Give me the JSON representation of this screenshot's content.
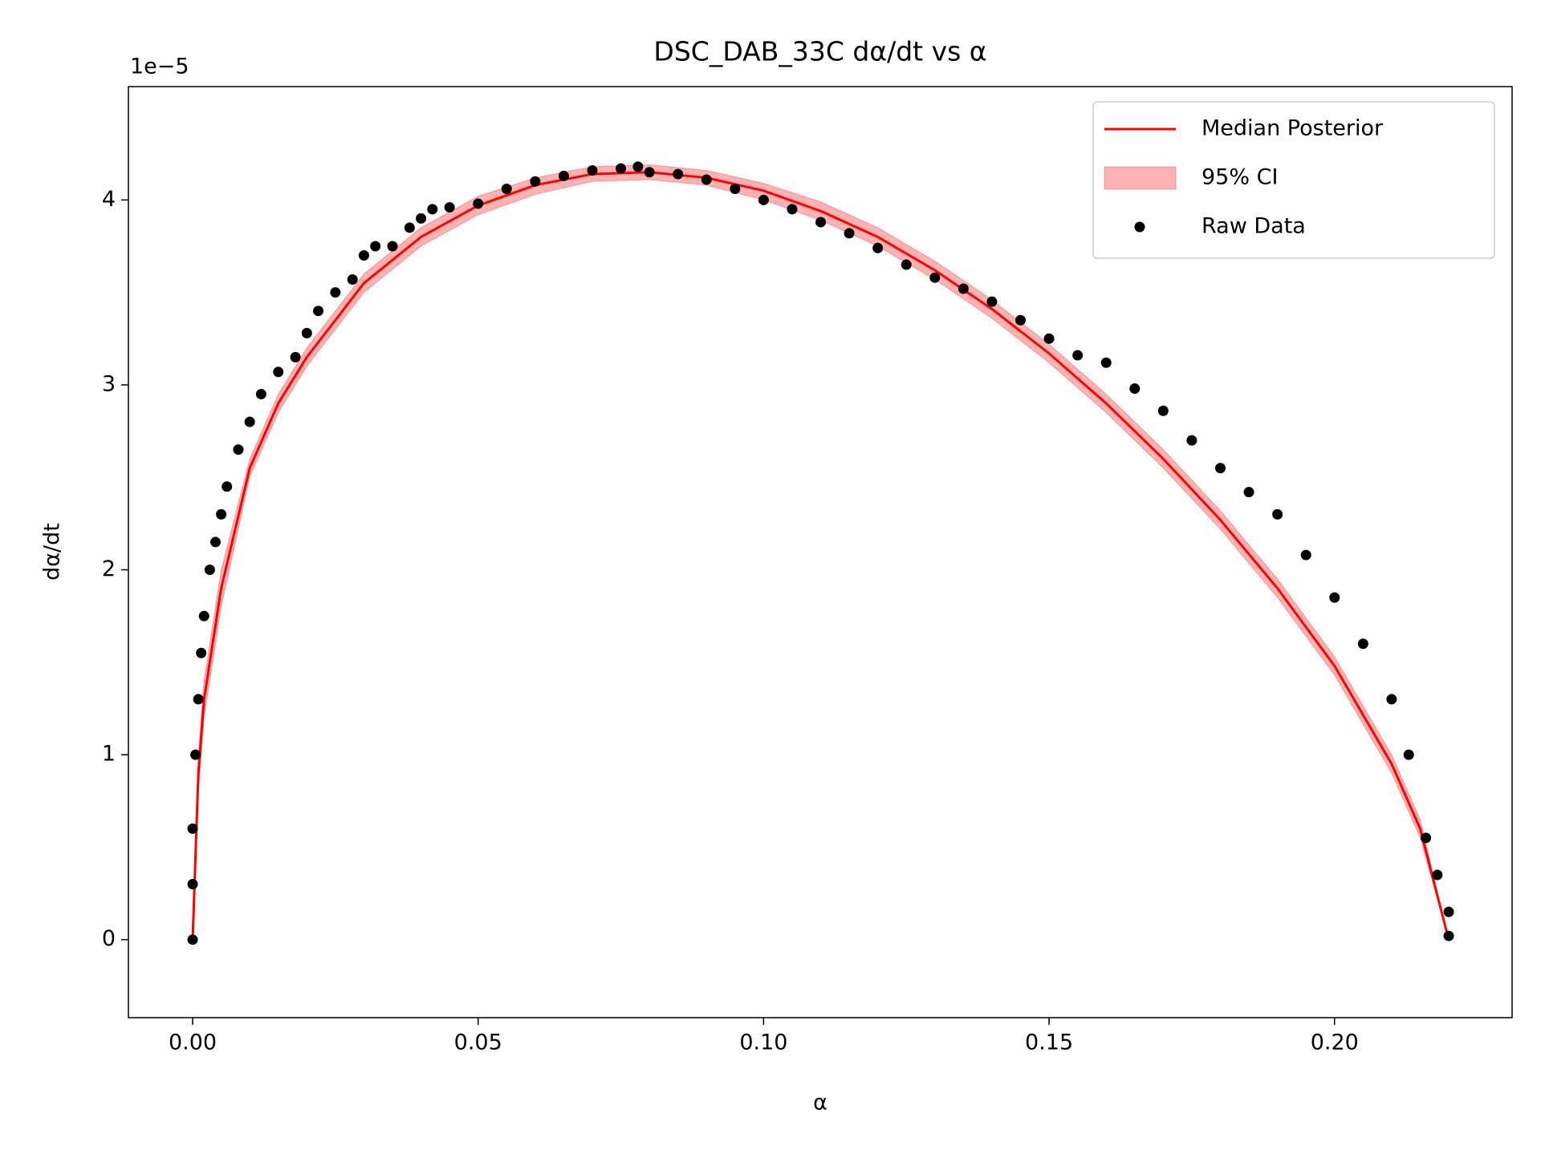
{
  "chart_data": {
    "type": "scatter",
    "title": "DSC_DAB_33C dα/dt vs α",
    "x_label": "α",
    "y_label": "dα/dt",
    "y_offset_label": "1e−5",
    "xlim": [
      -0.01125,
      0.2311
    ],
    "ylim": [
      -0.422,
      4.613
    ],
    "xticks": [
      {
        "value": 0,
        "label": "0.00"
      },
      {
        "value": 0.05,
        "label": "0.05"
      },
      {
        "value": 0.1,
        "label": "0.10"
      },
      {
        "value": 0.15,
        "label": "0.15"
      },
      {
        "value": 0.2,
        "label": "0.20"
      }
    ],
    "yticks": [
      0,
      1,
      2,
      3,
      4
    ],
    "legend": "upper right",
    "series": [
      {
        "name": "95% CI",
        "type": "area",
        "color": "#ff0000",
        "x": [
          0,
          0.001,
          0.002,
          0.005,
          0.01,
          0.015,
          0.02,
          0.03,
          0.04,
          0.05,
          0.06,
          0.07,
          0.08,
          0.09,
          0.1,
          0.11,
          0.12,
          0.13,
          0.14,
          0.15,
          0.16,
          0.17,
          0.18,
          0.19,
          0.2,
          0.21,
          0.215,
          0.22
        ],
        "lower": [
          0,
          0.8,
          1.2,
          1.8,
          2.5,
          2.85,
          3.1,
          3.5,
          3.75,
          3.92,
          4.03,
          4.1,
          4.11,
          4.08,
          4.0,
          3.89,
          3.75,
          3.57,
          3.36,
          3.12,
          2.85,
          2.55,
          2.22,
          1.85,
          1.43,
          0.9,
          0.55,
          0
        ],
        "upper": [
          0,
          1.0,
          1.4,
          2.0,
          2.6,
          2.95,
          3.2,
          3.6,
          3.85,
          4.02,
          4.12,
          4.18,
          4.19,
          4.16,
          4.09,
          3.99,
          3.85,
          3.67,
          3.46,
          3.22,
          2.95,
          2.65,
          2.32,
          1.95,
          1.53,
          1.0,
          0.65,
          0
        ]
      },
      {
        "name": "Median Posterior",
        "type": "line",
        "color": "#ff0000",
        "x": [
          0,
          0.001,
          0.002,
          0.005,
          0.01,
          0.015,
          0.02,
          0.03,
          0.04,
          0.05,
          0.06,
          0.07,
          0.08,
          0.09,
          0.1,
          0.11,
          0.12,
          0.13,
          0.14,
          0.15,
          0.16,
          0.17,
          0.18,
          0.19,
          0.2,
          0.21,
          0.215,
          0.22
        ],
        "values": [
          0,
          0.9,
          1.3,
          1.9,
          2.55,
          2.9,
          3.15,
          3.55,
          3.8,
          3.97,
          4.08,
          4.14,
          4.15,
          4.12,
          4.05,
          3.94,
          3.8,
          3.62,
          3.41,
          3.17,
          2.9,
          2.6,
          2.27,
          1.9,
          1.48,
          0.95,
          0.6,
          0
        ]
      },
      {
        "name": "Raw Data",
        "type": "scatter",
        "color": "#000000",
        "x": [
          0,
          0,
          0,
          0.0005,
          0.001,
          0.0015,
          0.002,
          0.003,
          0.004,
          0.005,
          0.006,
          0.008,
          0.01,
          0.012,
          0.015,
          0.018,
          0.02,
          0.022,
          0.025,
          0.028,
          0.03,
          0.032,
          0.035,
          0.038,
          0.04,
          0.042,
          0.045,
          0.05,
          0.055,
          0.06,
          0.065,
          0.07,
          0.075,
          0.078,
          0.08,
          0.085,
          0.09,
          0.095,
          0.1,
          0.105,
          0.11,
          0.115,
          0.12,
          0.125,
          0.13,
          0.135,
          0.14,
          0.145,
          0.15,
          0.155,
          0.16,
          0.165,
          0.17,
          0.175,
          0.18,
          0.185,
          0.19,
          0.195,
          0.2,
          0.205,
          0.21,
          0.213,
          0.216,
          0.218,
          0.22,
          0.22
        ],
        "values": [
          0,
          0.3,
          0.6,
          1.0,
          1.3,
          1.55,
          1.75,
          2.0,
          2.15,
          2.3,
          2.45,
          2.65,
          2.8,
          2.95,
          3.07,
          3.15,
          3.28,
          3.4,
          3.5,
          3.57,
          3.7,
          3.75,
          3.75,
          3.85,
          3.9,
          3.95,
          3.96,
          3.98,
          4.06,
          4.1,
          4.13,
          4.16,
          4.17,
          4.18,
          4.15,
          4.14,
          4.11,
          4.06,
          4.0,
          3.95,
          3.88,
          3.82,
          3.74,
          3.65,
          3.58,
          3.52,
          3.45,
          3.35,
          3.25,
          3.16,
          3.12,
          2.98,
          2.86,
          2.7,
          2.55,
          2.42,
          2.3,
          2.08,
          1.85,
          1.6,
          1.3,
          1.0,
          0.55,
          0.35,
          0.15,
          0.02
        ]
      }
    ]
  }
}
